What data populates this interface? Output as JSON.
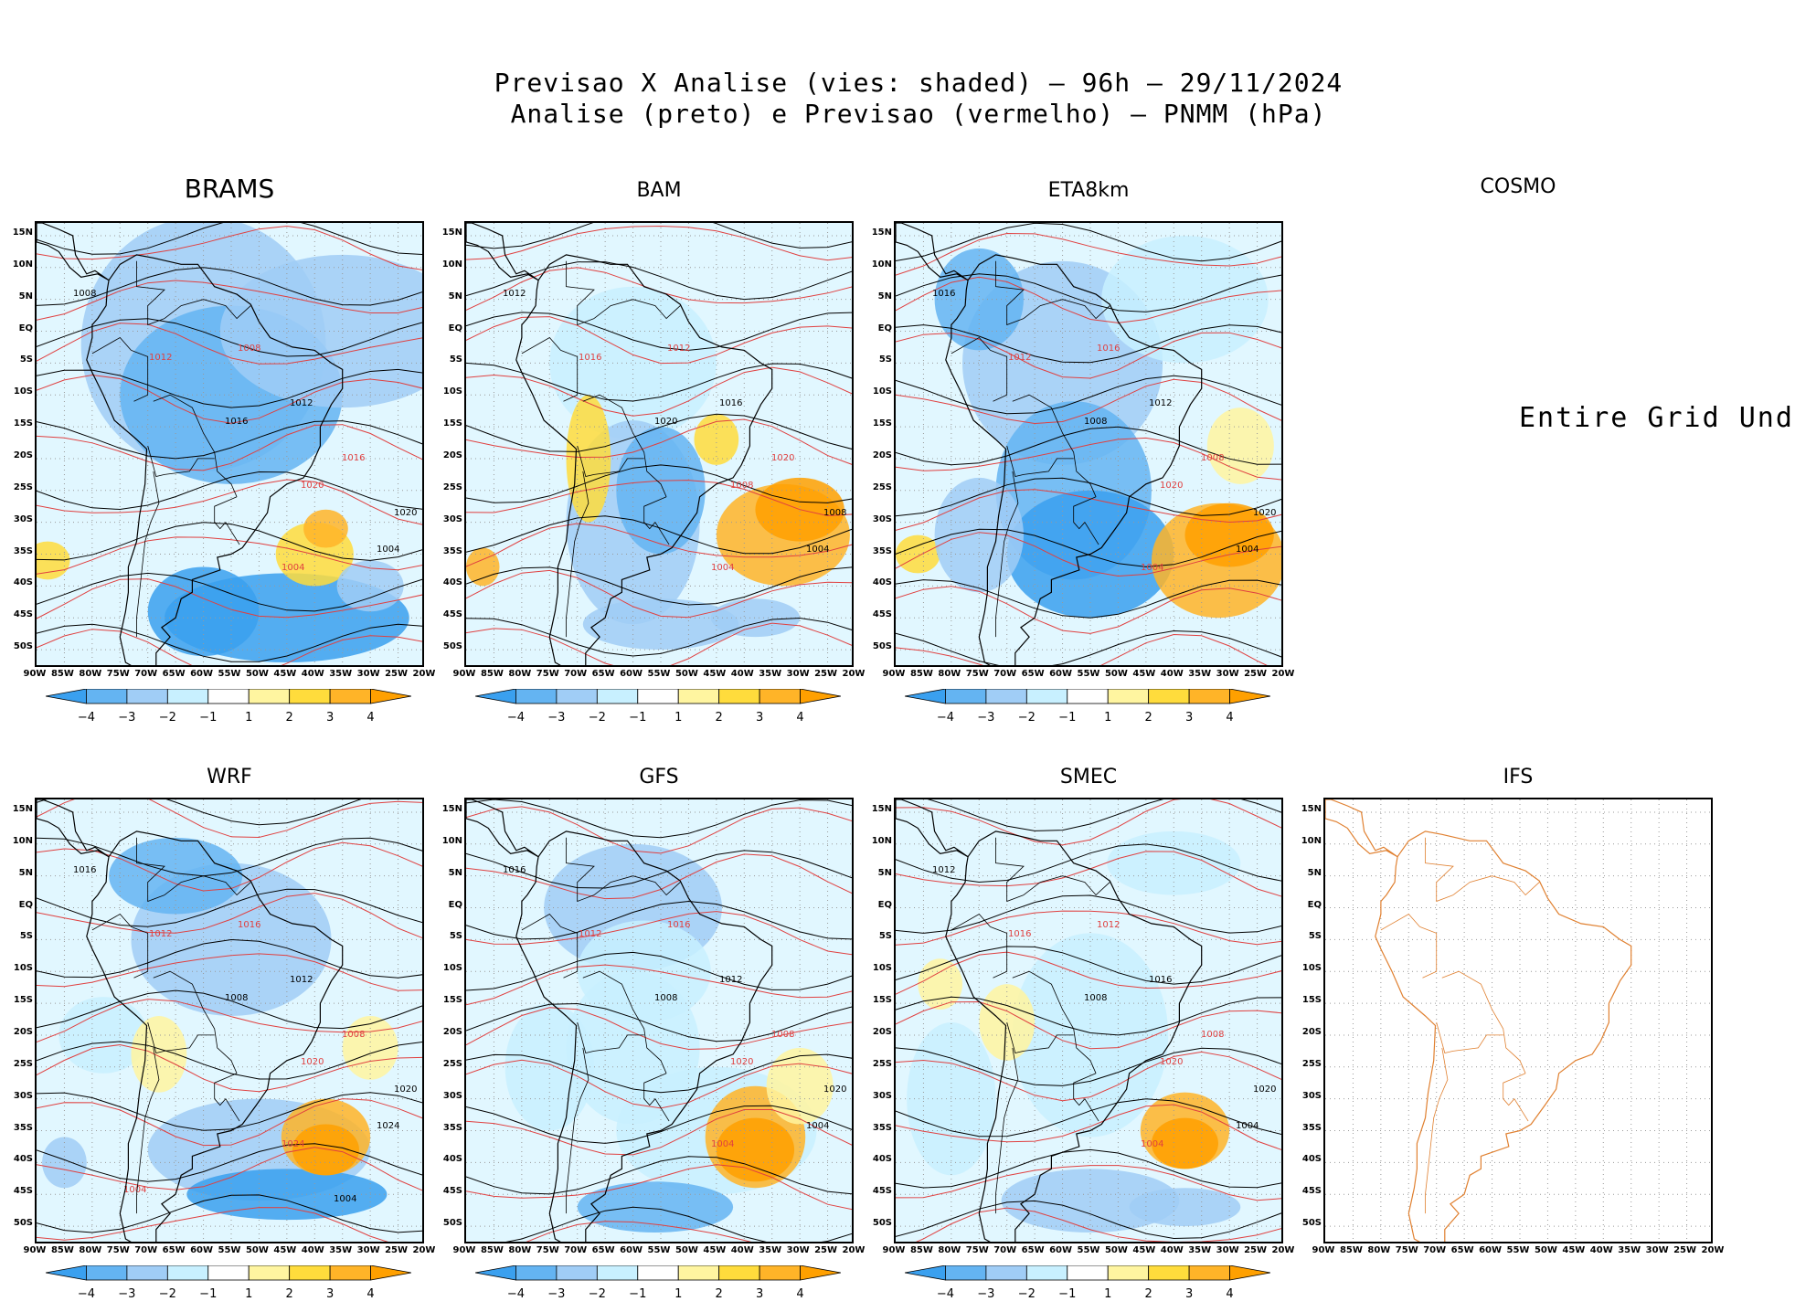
{
  "header": {
    "line1": "Previsao X Analise (vies: shaded) — 96h — 29/11/2024",
    "line2": "Analise (preto) e Previsao (vermelho) — PNMM (hPa)"
  },
  "axes": {
    "lat_labels": [
      "15N",
      "10N",
      "5N",
      "EQ",
      "5S",
      "10S",
      "15S",
      "20S",
      "25S",
      "30S",
      "35S",
      "40S",
      "45S",
      "50S"
    ],
    "lon_labels": [
      "90W",
      "85W",
      "80W",
      "75W",
      "70W",
      "65W",
      "60W",
      "55W",
      "50W",
      "45W",
      "40W",
      "35W",
      "30W",
      "25W",
      "20W"
    ]
  },
  "colorbar": {
    "tick_labels": [
      "−4",
      "−3",
      "−2",
      "−1",
      "1",
      "2",
      "3",
      "4"
    ],
    "colors": [
      "#3aa0ef",
      "#64b4f2",
      "#a0cdf6",
      "#c8f0ff",
      "#ffffff",
      "#fff5a0",
      "#ffdc3c",
      "#ffb428",
      "#ffa000"
    ]
  },
  "colors": {
    "analysis": "#000000",
    "forecast": "#e04040",
    "ifs_outline": "#e08030"
  },
  "panels": [
    {
      "name": "BRAMS",
      "title": "BRAMS",
      "has_data": true,
      "labels": [
        "1008",
        "1012",
        "1016",
        "1020",
        "1004"
      ]
    },
    {
      "name": "BAM",
      "title": "BAM",
      "has_data": true,
      "labels": [
        "1012",
        "1016",
        "1020",
        "1008",
        "1004"
      ]
    },
    {
      "name": "ETA8km",
      "title": "ETA8km",
      "has_data": true,
      "labels": [
        "1016",
        "1012",
        "1008",
        "1020",
        "1004"
      ]
    },
    {
      "name": "COSMO",
      "title": "COSMO",
      "has_data": false,
      "undefined_text": "Entire Grid Und"
    },
    {
      "name": "WRF",
      "title": "WRF",
      "has_data": true,
      "labels": [
        "1016",
        "1012",
        "1008",
        "1020",
        "1024",
        "1004"
      ]
    },
    {
      "name": "GFS",
      "title": "GFS",
      "has_data": true,
      "labels": [
        "1016",
        "1012",
        "1008",
        "1020",
        "1004"
      ]
    },
    {
      "name": "SMEC",
      "title": "SMEC",
      "has_data": true,
      "labels": [
        "1012",
        "1016",
        "1008",
        "1020",
        "1004"
      ]
    },
    {
      "name": "IFS",
      "title": "IFS",
      "has_data": false,
      "outline_only": true
    }
  ]
}
